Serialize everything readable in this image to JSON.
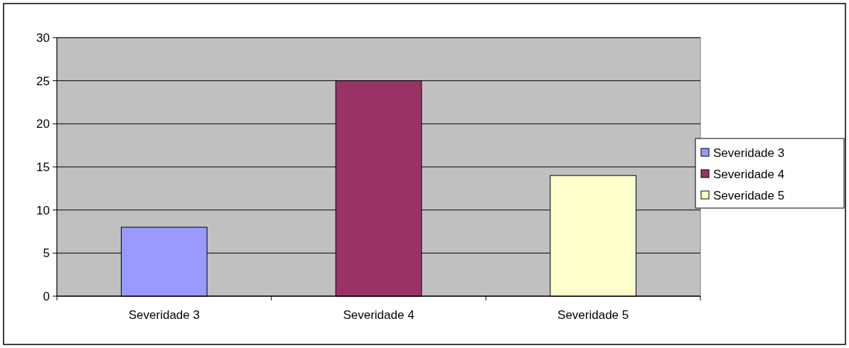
{
  "chart_data": {
    "type": "bar",
    "stacked": true,
    "categories": [
      "Severidade 3",
      "Severidade 4",
      "Severidade 5"
    ],
    "series": [
      {
        "name": "Severidade 3",
        "color": "#9999ff",
        "values": [
          8,
          null,
          null
        ]
      },
      {
        "name": "Severidade 4",
        "color": "#993366",
        "values": [
          null,
          25,
          null
        ]
      },
      {
        "name": "Severidade 5",
        "color": "#ffffcc",
        "values": [
          null,
          null,
          14
        ]
      }
    ],
    "ylim": [
      0,
      30
    ],
    "yticks": [
      0,
      5,
      10,
      15,
      20,
      25,
      30
    ],
    "grid": "y",
    "legend": "right"
  }
}
